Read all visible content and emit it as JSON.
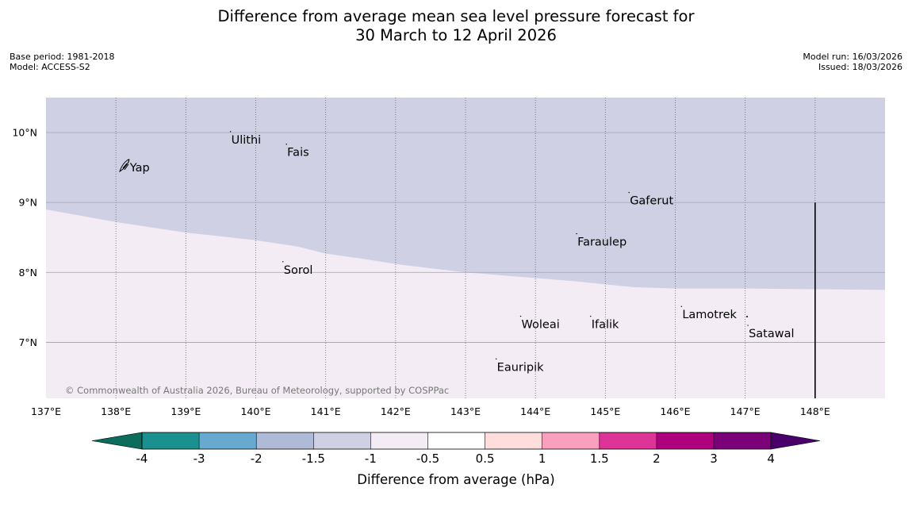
{
  "title_line1": "Difference from average mean sea level pressure forecast for",
  "title_line2": "30 March to 12 April 2026",
  "base_period": "Base period: 1981-2018",
  "model": "Model: ACCESS-S2",
  "model_run": "Model run: 16/03/2026",
  "issued": "Issued: 18/03/2026",
  "copyright": "© Commonwealth of Australia 2026, Bureau of Meteorology, supported by COSPPac",
  "map": {
    "lon_range": [
      137,
      149
    ],
    "lat_range": [
      6.2,
      10.5
    ],
    "lon_ticks": [
      {
        "value": 137,
        "label": "137°E"
      },
      {
        "value": 138,
        "label": "138°E"
      },
      {
        "value": 139,
        "label": "139°E"
      },
      {
        "value": 140,
        "label": "140°E"
      },
      {
        "value": 141,
        "label": "141°E"
      },
      {
        "value": 142,
        "label": "142°E"
      },
      {
        "value": 143,
        "label": "143°E"
      },
      {
        "value": 144,
        "label": "144°E"
      },
      {
        "value": 145,
        "label": "145°E"
      },
      {
        "value": 146,
        "label": "146°E"
      },
      {
        "value": 147,
        "label": "147°E"
      },
      {
        "value": 148,
        "label": "148°E"
      }
    ],
    "lat_ticks": [
      {
        "value": 10,
        "label": "10°N"
      },
      {
        "value": 9,
        "label": "9°N"
      },
      {
        "value": 8,
        "label": "8°N"
      },
      {
        "value": 7,
        "label": "7°N"
      }
    ],
    "places": [
      {
        "name": "Yap",
        "lon": 138.2,
        "lat": 9.5
      },
      {
        "name": "Ulithi",
        "lon": 139.65,
        "lat": 9.9
      },
      {
        "name": "Fais",
        "lon": 140.45,
        "lat": 9.72
      },
      {
        "name": "Gaferut",
        "lon": 145.35,
        "lat": 9.03
      },
      {
        "name": "Faraulep",
        "lon": 144.6,
        "lat": 8.44
      },
      {
        "name": "Sorol",
        "lon": 140.4,
        "lat": 8.04
      },
      {
        "name": "Woleai",
        "lon": 143.8,
        "lat": 7.26
      },
      {
        "name": "Ifalik",
        "lon": 144.8,
        "lat": 7.26
      },
      {
        "name": "Lamotrek",
        "lon": 146.1,
        "lat": 7.4
      },
      {
        "name": "Satawal",
        "lon": 147.05,
        "lat": 7.13
      },
      {
        "name": "Eauripik",
        "lon": 143.45,
        "lat": 6.65
      }
    ],
    "boundary_line_lon": 148,
    "boundary_line_lat_top": 9,
    "contour_minus_1": [
      [
        137,
        8.9
      ],
      [
        138,
        8.72
      ],
      [
        139,
        8.57
      ],
      [
        140,
        8.46
      ],
      [
        140.6,
        8.37
      ],
      [
        141,
        8.27
      ],
      [
        141.5,
        8.2
      ],
      [
        142,
        8.12
      ],
      [
        142.5,
        8.06
      ],
      [
        143,
        8.0
      ],
      [
        143.5,
        7.96
      ],
      [
        144,
        7.92
      ],
      [
        144.6,
        7.87
      ],
      [
        145.4,
        7.79
      ],
      [
        146,
        7.77
      ],
      [
        147,
        7.77
      ],
      [
        148,
        7.76
      ],
      [
        149,
        7.75
      ]
    ],
    "region_colors": {
      "minus_1_5_to_minus_1": "#cfd0e4",
      "minus_1_to_minus_0_5": "#f4ecf5"
    }
  },
  "chart_data": {
    "type": "heatmap",
    "title": "Difference from average mean sea level pressure forecast for 30 March to 12 April 2026",
    "colorbar": {
      "title": "Difference from average (hPa)",
      "levels": [
        "-4",
        "-3",
        "-2",
        "-1.5",
        "-1",
        "-0.5",
        "0.5",
        "1",
        "1.5",
        "2",
        "3",
        "4"
      ],
      "colors": [
        "#0d6d5c",
        "#1b918f",
        "#68a9d0",
        "#afbad6",
        "#cfd0e4",
        "#f4ecf5",
        "#ffffff",
        "#ffdddd",
        "#f8a0bd",
        "#dd3497",
        "#ae017e",
        "#7a0177",
        "#49006a"
      ],
      "extend": "both"
    },
    "regions": [
      {
        "range": [
          -1.5,
          -1
        ],
        "description_color": "#cfd0e4"
      },
      {
        "range": [
          -1,
          -0.5
        ],
        "description_color": "#f4ecf5"
      }
    ]
  }
}
